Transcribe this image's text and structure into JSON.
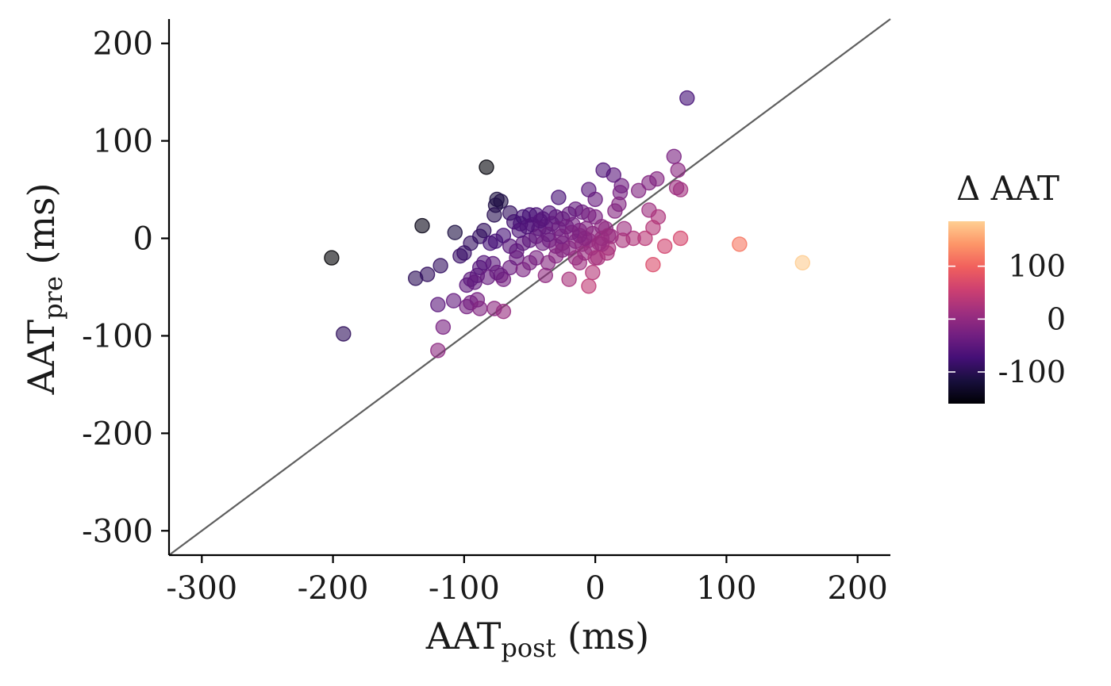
{
  "chart_data": {
    "type": "scatter",
    "xlabel": {
      "main": "AAT",
      "sub": "post",
      "unit": "(ms)"
    },
    "ylabel": {
      "main": "AAT",
      "sub": "pre",
      "unit": "(ms)"
    },
    "xlim": [
      -325,
      225
    ],
    "ylim": [
      -325,
      225
    ],
    "xticks": [
      -300,
      -200,
      -100,
      0,
      100,
      200
    ],
    "yticks": [
      -300,
      -200,
      -100,
      0,
      100,
      200
    ],
    "x_tick_labels": [
      "-300",
      "-200",
      "-100",
      "0",
      "100",
      "200"
    ],
    "y_tick_labels": [
      "-300",
      "-200",
      "-100",
      "0",
      "100",
      "200"
    ],
    "reference_line": "identity (y = x)",
    "grid": false,
    "point_opacity": 0.6,
    "legend": {
      "title": "Δ AAT",
      "placement": "right",
      "colormap": "magma",
      "color_range": [
        -160,
        185
      ],
      "ticks": [
        100,
        0,
        -100
      ],
      "tick_labels": [
        "100",
        "0",
        "-100"
      ],
      "colormap_stops": [
        "#000004",
        "#180f3d",
        "#440f76",
        "#721f81",
        "#9e2f7f",
        "#cd4071",
        "#f1605d",
        "#fd9668",
        "#fecf92"
      ]
    },
    "color_variable": "AAT_post - AAT_pre",
    "points": [
      {
        "x": 70,
        "y": 144
      },
      {
        "x": 60,
        "y": 84
      },
      {
        "x": 63,
        "y": 70
      },
      {
        "x": 65,
        "y": 50
      },
      {
        "x": 62,
        "y": 52
      },
      {
        "x": 47,
        "y": 61
      },
      {
        "x": 41,
        "y": 57
      },
      {
        "x": 33,
        "y": 49
      },
      {
        "x": 20,
        "y": 54
      },
      {
        "x": 19,
        "y": 47
      },
      {
        "x": 14,
        "y": 65
      },
      {
        "x": 6,
        "y": 70
      },
      {
        "x": -5,
        "y": 50
      },
      {
        "x": 0,
        "y": 40
      },
      {
        "x": -28,
        "y": 42
      },
      {
        "x": -83,
        "y": 73
      },
      {
        "x": -75,
        "y": 40
      },
      {
        "x": -72,
        "y": 38
      },
      {
        "x": -76,
        "y": 34
      },
      {
        "x": -77,
        "y": 24
      },
      {
        "x": -65,
        "y": 26
      },
      {
        "x": -62,
        "y": 17
      },
      {
        "x": -57,
        "y": 15
      },
      {
        "x": -55,
        "y": 22
      },
      {
        "x": -50,
        "y": 24
      },
      {
        "x": -45,
        "y": 24
      },
      {
        "x": -40,
        "y": 20
      },
      {
        "x": -35,
        "y": 26
      },
      {
        "x": -30,
        "y": 22
      },
      {
        "x": -25,
        "y": 20
      },
      {
        "x": -20,
        "y": 25
      },
      {
        "x": -15,
        "y": 30
      },
      {
        "x": -10,
        "y": 27
      },
      {
        "x": -5,
        "y": 24
      },
      {
        "x": 0,
        "y": 22
      },
      {
        "x": -48,
        "y": 14
      },
      {
        "x": -43,
        "y": 10
      },
      {
        "x": -38,
        "y": 12
      },
      {
        "x": -33,
        "y": 15
      },
      {
        "x": -28,
        "y": 10
      },
      {
        "x": -22,
        "y": 12
      },
      {
        "x": -17,
        "y": 14
      },
      {
        "x": -12,
        "y": 8
      },
      {
        "x": -7,
        "y": 10
      },
      {
        "x": -2,
        "y": 5
      },
      {
        "x": 5,
        "y": 12
      },
      {
        "x": 8,
        "y": 10
      },
      {
        "x": 15,
        "y": 28
      },
      {
        "x": 18,
        "y": 35
      },
      {
        "x": 41,
        "y": 29
      },
      {
        "x": 48,
        "y": 22
      },
      {
        "x": 44,
        "y": 11
      },
      {
        "x": 38,
        "y": 0
      },
      {
        "x": 29,
        "y": 0
      },
      {
        "x": 22,
        "y": 10
      },
      {
        "x": 21,
        "y": -2
      },
      {
        "x": 12,
        "y": 2
      },
      {
        "x": 10,
        "y": -10
      },
      {
        "x": 9,
        "y": -15
      },
      {
        "x": 5,
        "y": -6
      },
      {
        "x": 2,
        "y": -20
      },
      {
        "x": -2,
        "y": -35
      },
      {
        "x": -5,
        "y": -49
      },
      {
        "x": 44,
        "y": -27
      },
      {
        "x": 53,
        "y": -8
      },
      {
        "x": 65,
        "y": 0
      },
      {
        "x": 110,
        "y": -6
      },
      {
        "x": 158,
        "y": -25
      },
      {
        "x": -132,
        "y": 13
      },
      {
        "x": -107,
        "y": 6
      },
      {
        "x": -201,
        "y": -20
      },
      {
        "x": -192,
        "y": -98
      },
      {
        "x": -137,
        "y": -41
      },
      {
        "x": -128,
        "y": -37
      },
      {
        "x": -118,
        "y": -28
      },
      {
        "x": -103,
        "y": -18
      },
      {
        "x": -100,
        "y": -15
      },
      {
        "x": -95,
        "y": -5
      },
      {
        "x": -88,
        "y": 2
      },
      {
        "x": -85,
        "y": 8
      },
      {
        "x": -80,
        "y": -5
      },
      {
        "x": -76,
        "y": -3
      },
      {
        "x": -70,
        "y": 3
      },
      {
        "x": -65,
        "y": -8
      },
      {
        "x": -60,
        "y": -13
      },
      {
        "x": -55,
        "y": -5
      },
      {
        "x": -50,
        "y": -2
      },
      {
        "x": -45,
        "y": 2
      },
      {
        "x": -40,
        "y": -5
      },
      {
        "x": -35,
        "y": -2
      },
      {
        "x": -30,
        "y": -8
      },
      {
        "x": -25,
        "y": -5
      },
      {
        "x": -20,
        "y": -10
      },
      {
        "x": -15,
        "y": -3
      },
      {
        "x": -10,
        "y": -6
      },
      {
        "x": -5,
        "y": -2
      },
      {
        "x": -3,
        "y": -10
      },
      {
        "x": 3,
        "y": -5
      },
      {
        "x": -98,
        "y": -48
      },
      {
        "x": -95,
        "y": -42
      },
      {
        "x": -90,
        "y": -38
      },
      {
        "x": -88,
        "y": -30
      },
      {
        "x": -85,
        "y": -25
      },
      {
        "x": -78,
        "y": -26
      },
      {
        "x": -72,
        "y": -38
      },
      {
        "x": -70,
        "y": -42
      },
      {
        "x": -65,
        "y": -30
      },
      {
        "x": -60,
        "y": -20
      },
      {
        "x": -55,
        "y": -32
      },
      {
        "x": -50,
        "y": -25
      },
      {
        "x": -45,
        "y": -20
      },
      {
        "x": -38,
        "y": -38
      },
      {
        "x": -36,
        "y": -25
      },
      {
        "x": -30,
        "y": -18
      },
      {
        "x": -25,
        "y": -12
      },
      {
        "x": -20,
        "y": -42
      },
      {
        "x": -12,
        "y": -25
      },
      {
        "x": -8,
        "y": -15
      },
      {
        "x": 0,
        "y": -20
      },
      {
        "x": -108,
        "y": -64
      },
      {
        "x": -98,
        "y": -70
      },
      {
        "x": -95,
        "y": -66
      },
      {
        "x": -90,
        "y": -63
      },
      {
        "x": -88,
        "y": -72
      },
      {
        "x": -77,
        "y": -72
      },
      {
        "x": -70,
        "y": -75
      },
      {
        "x": -120,
        "y": -68
      },
      {
        "x": -116,
        "y": -91
      },
      {
        "x": -120,
        "y": -115
      },
      {
        "x": -92,
        "y": -45
      },
      {
        "x": -82,
        "y": -40
      },
      {
        "x": -75,
        "y": -35
      },
      {
        "x": -15,
        "y": -20
      },
      {
        "x": -8,
        "y": 0
      },
      {
        "x": -12,
        "y": 3
      },
      {
        "x": 5,
        "y": 0
      },
      {
        "x": 10,
        "y": 3
      },
      {
        "x": -58,
        "y": 8
      },
      {
        "x": -52,
        "y": 12
      },
      {
        "x": -42,
        "y": 18
      },
      {
        "x": -36,
        "y": 4
      },
      {
        "x": -26,
        "y": 2
      },
      {
        "x": -18,
        "y": 6
      }
    ]
  }
}
